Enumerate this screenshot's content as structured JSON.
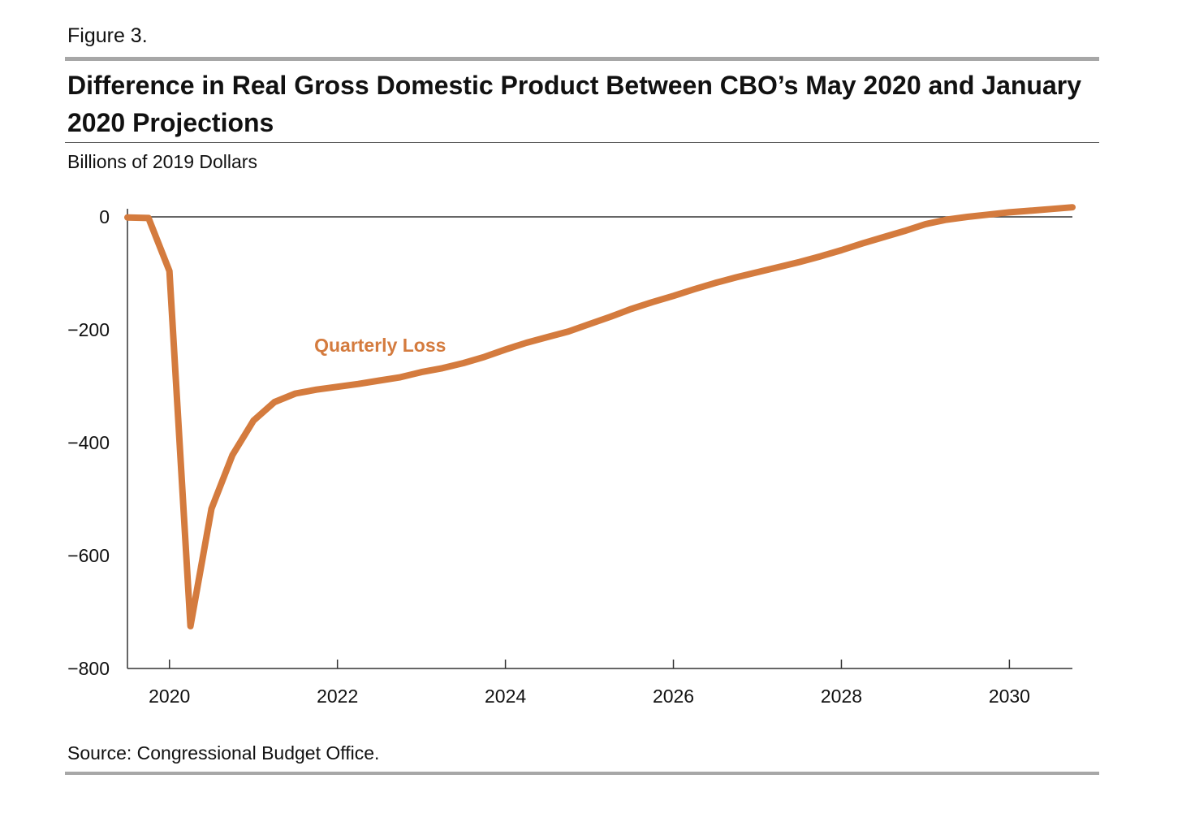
{
  "figure_label": "Figure 3.",
  "title": "Difference in Real Gross Domestic Product Between CBO’s May 2020 and January 2020 Projections",
  "units_label": "Billions of 2019 Dollars",
  "source": "Source: Congressional Budget Office.",
  "colors": {
    "series": "#d47b3e",
    "rule": "#a7a7a7"
  },
  "chart_data": {
    "type": "line",
    "title": "Difference in Real Gross Domestic Product Between CBO’s May 2020 and January 2020 Projections",
    "ylabel": "Billions of 2019 Dollars",
    "xlabel": "",
    "xlim": [
      2019.5,
      2030.75
    ],
    "ylim": [
      -800,
      15
    ],
    "x_ticks": [
      2020,
      2022,
      2024,
      2026,
      2028,
      2030
    ],
    "x_tick_labels": [
      "2020",
      "2022",
      "2024",
      "2026",
      "2028",
      "2030"
    ],
    "y_ticks": [
      0,
      -200,
      -400,
      -600,
      -800
    ],
    "y_tick_labels": [
      "0",
      "−200",
      "−400",
      "−600",
      "−800"
    ],
    "grid": false,
    "series": [
      {
        "name": "Quarterly Loss",
        "x": [
          2019.5,
          2019.75,
          2020.0,
          2020.25,
          2020.5,
          2020.75,
          2021.0,
          2021.25,
          2021.5,
          2021.75,
          2022.0,
          2022.25,
          2022.5,
          2022.75,
          2023.0,
          2023.25,
          2023.5,
          2023.75,
          2024.0,
          2024.25,
          2024.5,
          2024.75,
          2025.0,
          2025.25,
          2025.5,
          2025.75,
          2026.0,
          2026.25,
          2026.5,
          2026.75,
          2027.0,
          2027.25,
          2027.5,
          2027.75,
          2028.0,
          2028.25,
          2028.5,
          2028.75,
          2029.0,
          2029.25,
          2029.5,
          2029.75,
          2030.0,
          2030.25,
          2030.5,
          2030.75
        ],
        "y": [
          -1,
          -2,
          -96,
          -725,
          -517,
          -422,
          -361,
          -328,
          -313,
          -306,
          -301,
          -296,
          -290,
          -284,
          -275,
          -268,
          -259,
          -248,
          -235,
          -223,
          -213,
          -203,
          -190,
          -177,
          -163,
          -151,
          -140,
          -128,
          -117,
          -107,
          -98,
          -89,
          -80,
          -70,
          -59,
          -47,
          -36,
          -25,
          -13,
          -5,
          0,
          4,
          8,
          11,
          14,
          17
        ]
      }
    ],
    "annotations": [
      {
        "text": "Quarterly Loss",
        "x": 2022.75,
        "y": -232
      }
    ]
  }
}
